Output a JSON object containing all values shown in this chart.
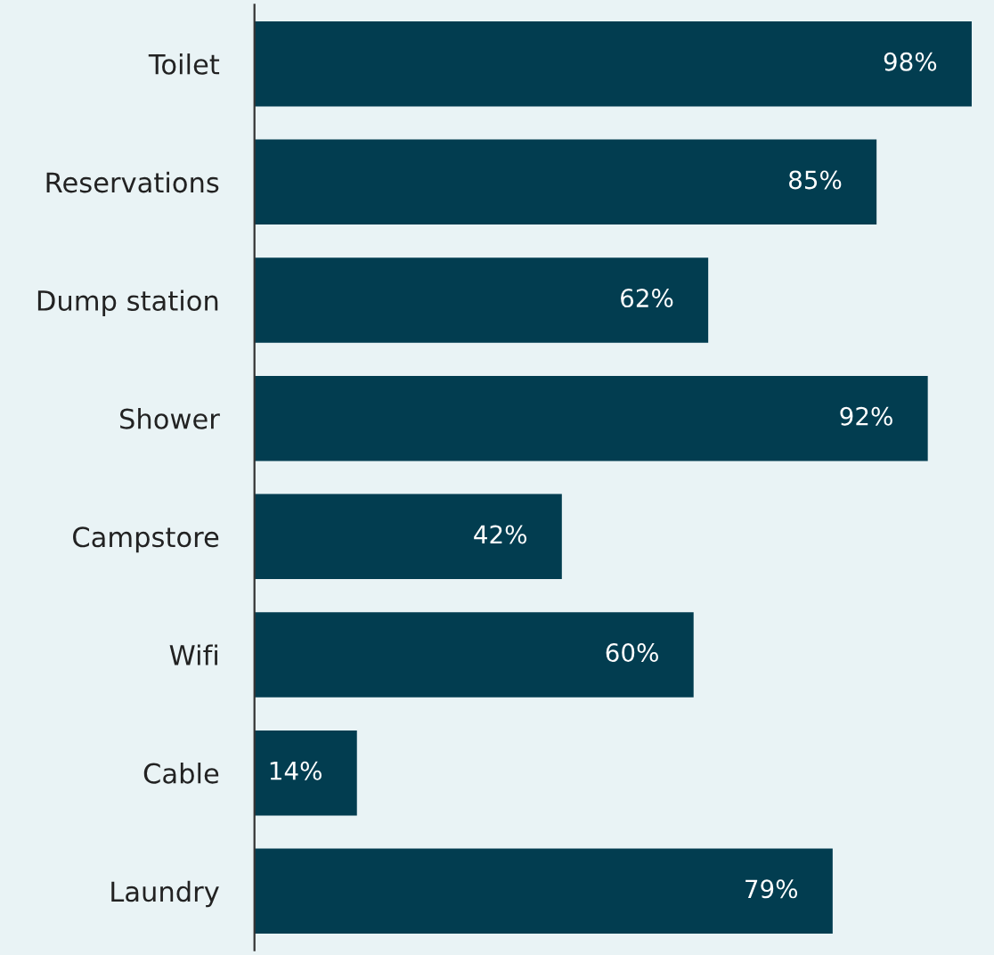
{
  "chart_data": {
    "type": "bar",
    "orientation": "horizontal",
    "categories": [
      "Toilet",
      "Reservations",
      "Dump station",
      "Shower",
      "Campstore",
      "Wifi",
      "Cable",
      "Laundry"
    ],
    "values": [
      98,
      85,
      62,
      92,
      42,
      60,
      14,
      79
    ],
    "value_labels": [
      "98%",
      "85%",
      "62%",
      "92%",
      "42%",
      "60%",
      "14%",
      "79%"
    ],
    "color": "#023d50",
    "grid": false,
    "legend": false
  }
}
